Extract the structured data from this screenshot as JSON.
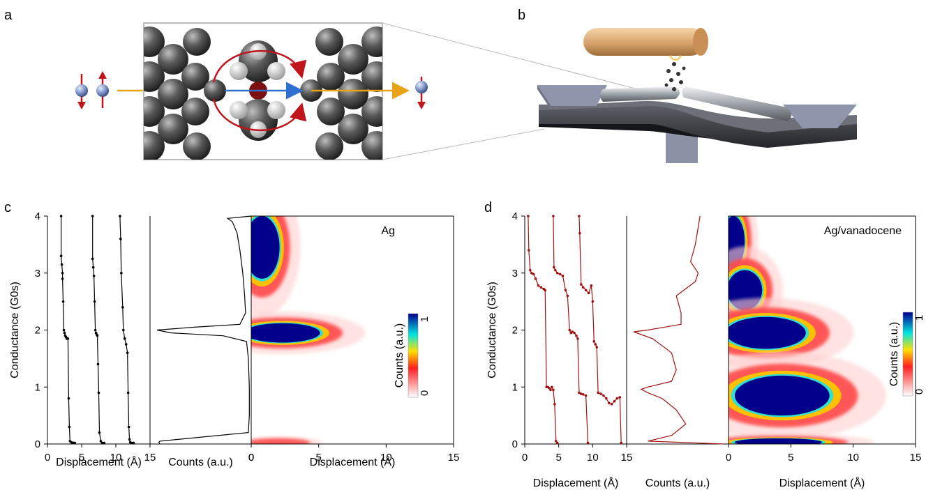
{
  "panels": {
    "a": "a",
    "b": "b",
    "c": "c",
    "d": "d"
  },
  "colors": {
    "trace_c": "#000000",
    "trace_d": "#a01010",
    "arrow_orange": "#e8a317",
    "arrow_blue": "#2f6fd0",
    "arrow_red": "#c0151b"
  },
  "icons": [
    "electron-spin-up-icon",
    "electron-spin-down-icon",
    "silver-atom-icon",
    "vanadocene-molecule-icon",
    "break-junction-apparatus-icon"
  ],
  "chart_data": [
    {
      "type": "line",
      "panel": "c",
      "title": "",
      "annotation": "Ag",
      "ylabel": "Conductance (G0s)",
      "ylim": [
        0,
        4
      ],
      "yticks": [
        "0",
        "1",
        "2",
        "3",
        "4"
      ],
      "traces": {
        "xlabel": "Displacement (Å)",
        "xticks": [
          "0",
          "5",
          "10",
          "15"
        ],
        "xlim": [
          0,
          15
        ],
        "series": [
          {
            "x": [
              2.0,
              2.0,
              2.1,
              2.2,
              2.2,
              2.3,
              2.4,
              2.5,
              2.6,
              2.7,
              2.8,
              3.0,
              3.1,
              3.2,
              3.3,
              3.5,
              3.6,
              3.8,
              4.0
            ],
            "y": [
              4.0,
              3.3,
              3.15,
              3.0,
              2.9,
              2.5,
              2.0,
              1.95,
              1.9,
              1.88,
              1.85,
              1.85,
              0.8,
              0.3,
              0.05,
              0.03,
              0.02,
              0.02,
              0.02
            ]
          },
          {
            "x": [
              6.6,
              6.6,
              6.7,
              6.8,
              6.9,
              7.0,
              7.1,
              7.2,
              7.3,
              7.4,
              7.5,
              7.6,
              7.8,
              8.0,
              8.3
            ],
            "y": [
              4.0,
              3.25,
              3.1,
              2.95,
              2.5,
              2.0,
              1.95,
              1.92,
              1.9,
              1.4,
              0.9,
              0.2,
              0.05,
              0.02,
              0.02
            ]
          },
          {
            "x": [
              10.6,
              10.7,
              10.8,
              11.0,
              11.1,
              11.3,
              11.5,
              11.7,
              11.8,
              11.9,
              12.0,
              12.1,
              12.3,
              12.6
            ],
            "y": [
              4.0,
              3.6,
              3.0,
              2.4,
              2.0,
              1.85,
              1.75,
              1.6,
              0.9,
              0.3,
              0.08,
              0.03,
              0.02,
              0.02
            ]
          }
        ]
      },
      "histogram": {
        "xlabel": "Counts (a.u.)",
        "xtick": "0",
        "y": [
          0.0,
          0.03,
          0.05,
          0.2,
          0.5,
          1.0,
          1.5,
          1.8,
          1.9,
          1.95,
          2.0,
          2.05,
          2.1,
          2.3,
          2.6,
          3.0,
          3.4,
          3.7,
          3.9,
          3.96,
          4.0
        ],
        "counts": [
          0.97,
          0.98,
          0.97,
          0.03,
          0.02,
          0.02,
          0.03,
          0.05,
          0.3,
          0.85,
          1.0,
          0.6,
          0.12,
          0.06,
          0.07,
          0.09,
          0.12,
          0.15,
          0.2,
          0.25,
          0.0
        ]
      },
      "density": {
        "xlabel": "Displacement (Å)",
        "xticks": [
          "0",
          "5",
          "10",
          "15"
        ],
        "xlim": [
          0,
          15
        ],
        "colorbar": {
          "label": "Counts (a.u.)",
          "min": "0",
          "max": "1"
        },
        "blobs": [
          {
            "cx": 0.8,
            "cy": 3.45,
            "rx": 1.3,
            "ry": 0.55,
            "level": 1.0
          },
          {
            "cx": 2.3,
            "cy": 1.95,
            "rx": 2.8,
            "ry": 0.17,
            "level": 1.0
          },
          {
            "cx": 2.0,
            "cy": 0.02,
            "rx": 1.5,
            "ry": 0.05,
            "level": 0.5
          }
        ]
      }
    },
    {
      "type": "line",
      "panel": "d",
      "title": "",
      "annotation": "Ag/vanadocene",
      "ylabel": "Conductance (G0s)",
      "ylim": [
        0,
        4
      ],
      "yticks": [
        "0",
        "1",
        "2",
        "3",
        "4"
      ],
      "traces": {
        "xlabel": "Displacement (Å)",
        "xticks": [
          "0",
          "5",
          "10",
          "15"
        ],
        "xlim": [
          0,
          15
        ],
        "series": [
          {
            "x": [
              0.5,
              0.6,
              0.8,
              1.0,
              1.3,
              1.6,
              2.0,
              2.4,
              2.8,
              3.0,
              3.2,
              3.4,
              3.6,
              3.8,
              4.0,
              4.2,
              4.4,
              4.6,
              4.8
            ],
            "y": [
              4.0,
              3.4,
              3.05,
              3.0,
              2.98,
              2.9,
              2.78,
              2.75,
              2.72,
              2.7,
              1.0,
              1.0,
              0.98,
              0.95,
              1.0,
              0.95,
              0.7,
              0.05,
              0.02
            ]
          },
          {
            "x": [
              4.2,
              4.3,
              4.5,
              4.8,
              5.2,
              5.6,
              6.0,
              6.3,
              6.6,
              6.8,
              7.0,
              7.3,
              7.6,
              7.8,
              8.0,
              8.3,
              8.6,
              9.0,
              9.3
            ],
            "y": [
              4.0,
              3.1,
              3.05,
              3.0,
              2.98,
              2.95,
              2.7,
              2.6,
              2.0,
              1.95,
              1.97,
              1.95,
              1.9,
              1.85,
              0.9,
              0.88,
              0.87,
              0.85,
              0.02
            ]
          },
          {
            "x": [
              8.0,
              8.1,
              8.3,
              8.6,
              9.0,
              9.4,
              9.8,
              10.0,
              10.2,
              10.4,
              10.6,
              10.8,
              11.2,
              11.6,
              12.0,
              12.4,
              12.8,
              13.2,
              13.6,
              14.0,
              14.2
            ],
            "y": [
              4.0,
              3.7,
              2.8,
              2.75,
              2.7,
              2.65,
              2.78,
              2.5,
              1.8,
              1.75,
              1.7,
              0.9,
              0.88,
              0.85,
              0.8,
              0.72,
              0.7,
              0.75,
              0.8,
              0.82,
              0.02
            ]
          }
        ]
      },
      "histogram": {
        "xlabel": "Counts (a.u.)",
        "y": [
          0.0,
          0.05,
          0.15,
          0.35,
          0.6,
          0.8,
          0.9,
          0.96,
          1.0,
          1.1,
          1.3,
          1.6,
          1.85,
          1.97,
          2.0,
          2.1,
          2.3,
          2.6,
          2.85,
          3.0,
          3.2,
          3.5,
          3.8,
          4.0
        ],
        "counts": [
          0.05,
          0.85,
          0.6,
          0.45,
          0.55,
          0.7,
          0.85,
          0.92,
          0.85,
          0.6,
          0.55,
          0.6,
          0.8,
          1.0,
          0.85,
          0.5,
          0.5,
          0.55,
          0.35,
          0.32,
          0.4,
          0.35,
          0.32,
          0.3
        ]
      },
      "density": {
        "xlabel": "Displacement (Å)",
        "xticks": [
          "0",
          "5",
          "10",
          "15"
        ],
        "xlim": [
          0,
          15
        ],
        "colorbar": {
          "label": "Counts (a.u.)",
          "min": "0",
          "max": "1"
        },
        "blobs": [
          {
            "cx": 0.4,
            "cy": 3.55,
            "rx": 0.9,
            "ry": 0.45,
            "level": 1.0
          },
          {
            "cx": 1.3,
            "cy": 2.7,
            "rx": 1.4,
            "ry": 0.35,
            "level": 1.0
          },
          {
            "cx": 3.0,
            "cy": 1.95,
            "rx": 3.2,
            "ry": 0.28,
            "level": 1.0
          },
          {
            "cx": 4.3,
            "cy": 0.85,
            "rx": 3.8,
            "ry": 0.35,
            "level": 1.0
          },
          {
            "cx": 4.0,
            "cy": 0.03,
            "rx": 3.5,
            "ry": 0.07,
            "level": 1.0
          }
        ]
      }
    }
  ]
}
